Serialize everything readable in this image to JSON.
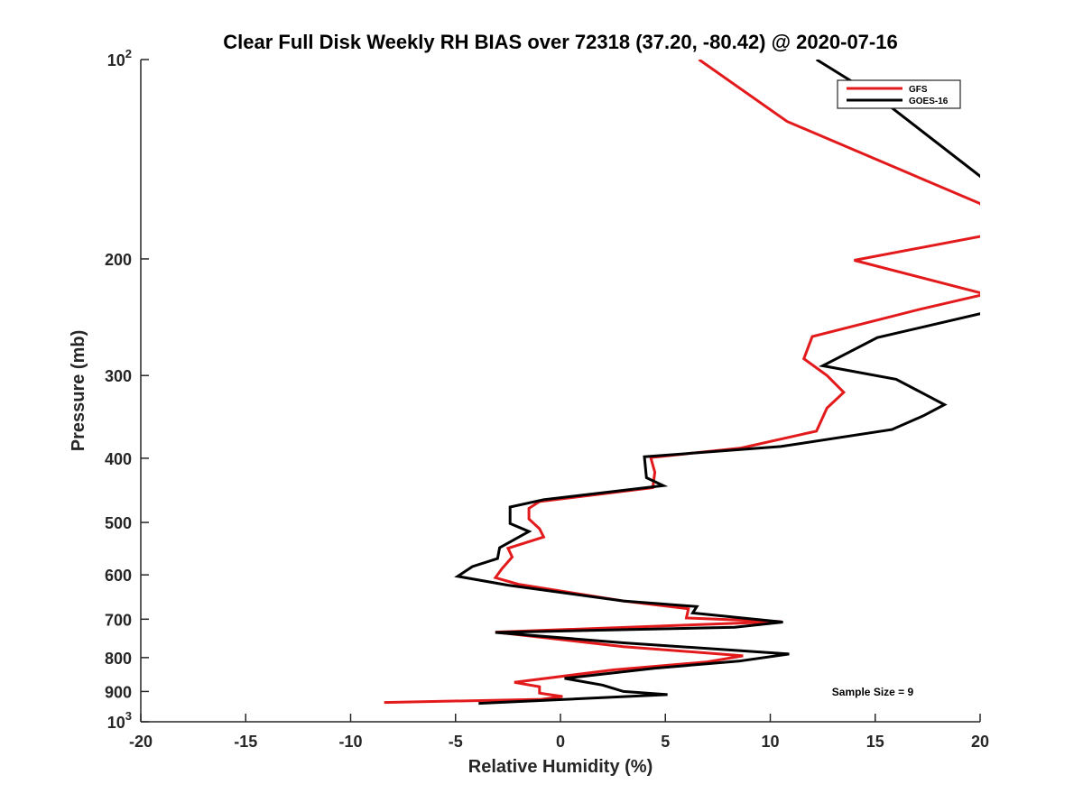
{
  "chart_data": {
    "type": "line",
    "title": "Clear Full Disk Weekly RH BIAS over 72318 (37.20, -80.42) @ 2020-07-16",
    "xlabel": "Relative Humidity (%)",
    "ylabel": "Pressure (mb)",
    "xlim": [
      -20,
      20
    ],
    "ylim": [
      100,
      1000
    ],
    "y_scale": "log",
    "y_reversed": true,
    "grid": false,
    "legend_position": "top-right",
    "x_ticks": [
      -20,
      -15,
      -10,
      -5,
      0,
      5,
      10,
      15,
      20
    ],
    "x_tick_labels": [
      "-20",
      "-15",
      "-10",
      "-5",
      "0",
      "5",
      "10",
      "15",
      "20"
    ],
    "y_ticks": [
      {
        "value": 100,
        "base": "10",
        "exp": "2"
      },
      {
        "value": 200,
        "base": "200",
        "exp": ""
      },
      {
        "value": 300,
        "base": "300",
        "exp": ""
      },
      {
        "value": 400,
        "base": "400",
        "exp": ""
      },
      {
        "value": 500,
        "base": "500",
        "exp": ""
      },
      {
        "value": 600,
        "base": "600",
        "exp": ""
      },
      {
        "value": 700,
        "base": "700",
        "exp": ""
      },
      {
        "value": 800,
        "base": "800",
        "exp": ""
      },
      {
        "value": 900,
        "base": "900",
        "exp": ""
      },
      {
        "value": 1000,
        "base": "10",
        "exp": "3"
      }
    ],
    "annotation": "Sample Size = 9",
    "series": [
      {
        "name": "GFS",
        "color": "#e31a1c",
        "points": [
          [
            6.6,
            100
          ],
          [
            10.8,
            124
          ],
          [
            20.0,
            165
          ],
          [
            20.6,
            175
          ],
          [
            20.6,
            184
          ],
          [
            20.0,
            185
          ],
          [
            14.0,
            201
          ],
          [
            20.0,
            225
          ],
          [
            20.6,
            226
          ],
          [
            20.0,
            227
          ],
          [
            17.2,
            238
          ],
          [
            12.0,
            262
          ],
          [
            11.6,
            283
          ],
          [
            12.7,
            300
          ],
          [
            13.5,
            318
          ],
          [
            12.7,
            336
          ],
          [
            12.2,
            364
          ],
          [
            8.6,
            386
          ],
          [
            4.3,
            399
          ],
          [
            4.5,
            420
          ],
          [
            4.4,
            443
          ],
          [
            -1.0,
            465
          ],
          [
            -1.5,
            476
          ],
          [
            -1.5,
            494
          ],
          [
            -1.0,
            511
          ],
          [
            -0.8,
            526
          ],
          [
            -2.5,
            547
          ],
          [
            -2.3,
            564
          ],
          [
            -2.8,
            588
          ],
          [
            -3.1,
            606
          ],
          [
            -2.0,
            620
          ],
          [
            3.0,
            657
          ],
          [
            6.1,
            675
          ],
          [
            6.0,
            697
          ],
          [
            10.5,
            706
          ],
          [
            -3.1,
            732
          ],
          [
            3.0,
            770
          ],
          [
            8.7,
            795
          ],
          [
            7.0,
            812
          ],
          [
            2.5,
            835
          ],
          [
            -2.2,
            872
          ],
          [
            -1.0,
            885
          ],
          [
            -1.0,
            905
          ],
          [
            0.1,
            916
          ],
          [
            -0.9,
            925
          ],
          [
            -8.4,
            935
          ]
        ]
      },
      {
        "name": "GOES-16",
        "color": "#000000",
        "points": [
          [
            12.2,
            100
          ],
          [
            15.3,
            115
          ],
          [
            20.0,
            150
          ],
          [
            20.6,
            157
          ],
          [
            20.6,
            239
          ],
          [
            20.0,
            242
          ],
          [
            15.1,
            263
          ],
          [
            12.5,
            290
          ],
          [
            16.0,
            304
          ],
          [
            18.3,
            332
          ],
          [
            17.3,
            345
          ],
          [
            15.8,
            362
          ],
          [
            10.5,
            384
          ],
          [
            4.0,
            398
          ],
          [
            4.1,
            428
          ],
          [
            4.9,
            440
          ],
          [
            -0.8,
            462
          ],
          [
            -2.4,
            474
          ],
          [
            -2.4,
            502
          ],
          [
            -1.5,
            516
          ],
          [
            -2.9,
            546
          ],
          [
            -3.0,
            567
          ],
          [
            -4.2,
            583
          ],
          [
            -4.9,
            603
          ],
          [
            -2.5,
            622
          ],
          [
            3.0,
            657
          ],
          [
            6.5,
            670
          ],
          [
            6.3,
            685
          ],
          [
            10.6,
            707
          ],
          [
            8.3,
            720
          ],
          [
            -3.1,
            733
          ],
          [
            3.0,
            760
          ],
          [
            10.9,
            790
          ],
          [
            8.5,
            810
          ],
          [
            4.5,
            830
          ],
          [
            0.2,
            860
          ],
          [
            2.0,
            880
          ],
          [
            3.0,
            900
          ],
          [
            5.1,
            910
          ],
          [
            -3.9,
            938
          ]
        ]
      }
    ]
  }
}
